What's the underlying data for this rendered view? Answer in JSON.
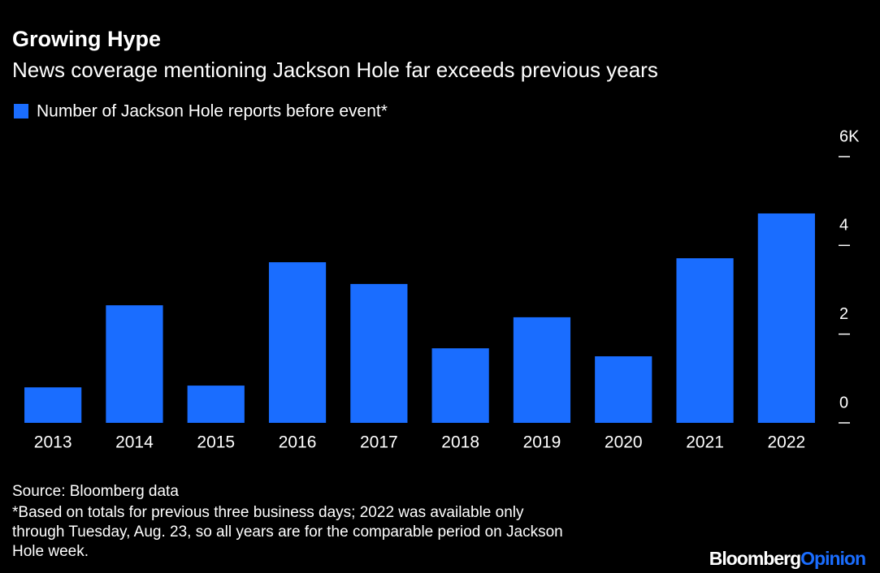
{
  "chart_data": {
    "type": "bar",
    "title": "Growing Hype",
    "subtitle": "News coverage mentioning Jackson Hole far exceeds previous years",
    "categories": [
      "2013",
      "2014",
      "2015",
      "2016",
      "2017",
      "2018",
      "2019",
      "2020",
      "2021",
      "2022"
    ],
    "series": [
      {
        "name": "Number of Jackson Hole reports before event*",
        "color": "#1a6dff",
        "values": [
          0.8,
          2.65,
          0.84,
          3.62,
          3.13,
          1.68,
          2.38,
          1.5,
          3.71,
          4.72
        ]
      }
    ],
    "ylim": [
      0,
      6
    ],
    "yticks": [
      0,
      2,
      4,
      {
        "value": 6,
        "label": "6K"
      }
    ],
    "source": "Source: Bloomberg data",
    "notes": [
      "*Based on totals for previous three business days; 2022 was available only",
      "through Tuesday, Aug. 23, so all years are for the comparable period on Jackson",
      "Hole week."
    ],
    "brand": [
      "Bloomberg",
      "Opinion"
    ]
  }
}
